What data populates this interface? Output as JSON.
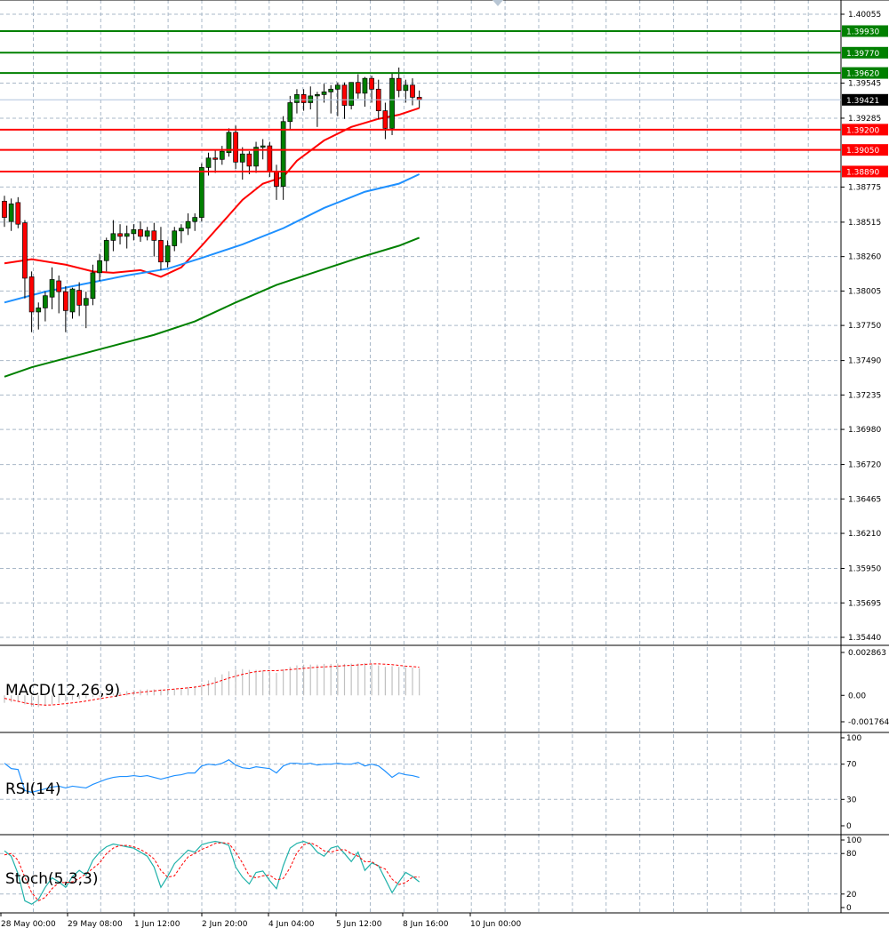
{
  "chart_data": {
    "type": "candlestick",
    "instrument_price_precision": 5,
    "price_axis": {
      "ylim": [
        1.3544,
        1.40055
      ],
      "tick_labels": [
        "1.40055",
        "1.39545",
        "1.39285",
        "1.38775",
        "1.38515",
        "1.38260",
        "1.38005",
        "1.37750",
        "1.37490",
        "1.37235",
        "1.36980",
        "1.36720",
        "1.36465",
        "1.36210",
        "1.35950",
        "1.35695",
        "1.35440"
      ]
    },
    "current_price": {
      "value": 1.39421,
      "label": "1.39421"
    },
    "resistance_levels": [
      {
        "value": 1.3993,
        "label": "1.39930",
        "color": "#008000"
      },
      {
        "value": 1.3977,
        "label": "1.39770",
        "color": "#008000"
      },
      {
        "value": 1.3962,
        "label": "1.39620",
        "color": "#008000"
      }
    ],
    "support_levels": [
      {
        "value": 1.392,
        "label": "1.39200",
        "color": "#ff0000"
      },
      {
        "value": 1.3905,
        "label": "1.39050",
        "color": "#ff0000"
      },
      {
        "value": 1.3889,
        "label": "1.38890",
        "color": "#ff0000"
      }
    ],
    "x_tick_labels": [
      "28 May 00:00",
      "29 May 08:00",
      "1 Jun 12:00",
      "2 Jun 20:00",
      "4 Jun 04:00",
      "5 Jun 12:00",
      "8 Jun 16:00",
      "10 Jun 00:00"
    ],
    "candles": [
      [
        1.3867,
        1.3871,
        1.3848,
        1.3855
      ],
      [
        1.3852,
        1.3869,
        1.3845,
        1.3865
      ],
      [
        1.3866,
        1.387,
        1.3847,
        1.385
      ],
      [
        1.3851,
        1.3853,
        1.3795,
        1.381
      ],
      [
        1.3811,
        1.3815,
        1.377,
        1.3785
      ],
      [
        1.3785,
        1.3792,
        1.3772,
        1.3788
      ],
      [
        1.3788,
        1.38,
        1.3778,
        1.3797
      ],
      [
        1.3796,
        1.3818,
        1.3787,
        1.3809
      ],
      [
        1.3808,
        1.3812,
        1.3784,
        1.38
      ],
      [
        1.38,
        1.3804,
        1.377,
        1.3786
      ],
      [
        1.3785,
        1.3803,
        1.378,
        1.3802
      ],
      [
        1.3801,
        1.3807,
        1.3782,
        1.379
      ],
      [
        1.379,
        1.38,
        1.3773,
        1.3795
      ],
      [
        1.3795,
        1.382,
        1.379,
        1.3814
      ],
      [
        1.3814,
        1.3828,
        1.3808,
        1.3823
      ],
      [
        1.3823,
        1.384,
        1.3815,
        1.3838
      ],
      [
        1.3838,
        1.3853,
        1.383,
        1.3843
      ],
      [
        1.3843,
        1.385,
        1.3835,
        1.3841
      ],
      [
        1.3841,
        1.3849,
        1.3832,
        1.3843
      ],
      [
        1.3843,
        1.385,
        1.3838,
        1.3846
      ],
      [
        1.3846,
        1.3852,
        1.3837,
        1.3841
      ],
      [
        1.3841,
        1.3848,
        1.3838,
        1.3845
      ],
      [
        1.3845,
        1.3851,
        1.3826,
        1.3838
      ],
      [
        1.3838,
        1.3848,
        1.3816,
        1.3822
      ],
      [
        1.3822,
        1.3838,
        1.3818,
        1.3834
      ],
      [
        1.3834,
        1.3848,
        1.383,
        1.3845
      ],
      [
        1.3845,
        1.385,
        1.3836,
        1.3847
      ],
      [
        1.3847,
        1.3858,
        1.3842,
        1.3852
      ],
      [
        1.3852,
        1.3858,
        1.3845,
        1.3855
      ],
      [
        1.3855,
        1.3895,
        1.3852,
        1.3892
      ],
      [
        1.3892,
        1.3903,
        1.3886,
        1.3899
      ],
      [
        1.3899,
        1.3905,
        1.3888,
        1.3898
      ],
      [
        1.3898,
        1.3908,
        1.3894,
        1.3904
      ],
      [
        1.3903,
        1.3921,
        1.39,
        1.3918
      ],
      [
        1.3918,
        1.3923,
        1.3891,
        1.3896
      ],
      [
        1.3896,
        1.3907,
        1.3883,
        1.3902
      ],
      [
        1.3902,
        1.3904,
        1.3887,
        1.3893
      ],
      [
        1.3893,
        1.3911,
        1.3888,
        1.3907
      ],
      [
        1.3907,
        1.3913,
        1.3898,
        1.3908
      ],
      [
        1.3908,
        1.3911,
        1.3885,
        1.3889
      ],
      [
        1.3889,
        1.3894,
        1.3868,
        1.3878
      ],
      [
        1.3878,
        1.393,
        1.3868,
        1.3926
      ],
      [
        1.3926,
        1.3945,
        1.392,
        1.394
      ],
      [
        1.394,
        1.395,
        1.3932,
        1.3946
      ],
      [
        1.3946,
        1.395,
        1.3934,
        1.394
      ],
      [
        1.394,
        1.3952,
        1.3935,
        1.3945
      ],
      [
        1.3945,
        1.3948,
        1.3922,
        1.3946
      ],
      [
        1.3946,
        1.3954,
        1.394,
        1.3948
      ],
      [
        1.3948,
        1.3953,
        1.3932,
        1.395
      ],
      [
        1.395,
        1.3955,
        1.393,
        1.3953
      ],
      [
        1.3953,
        1.3955,
        1.3928,
        1.3938
      ],
      [
        1.3938,
        1.3955,
        1.3935,
        1.3955
      ],
      [
        1.3955,
        1.3961,
        1.3943,
        1.3947
      ],
      [
        1.3947,
        1.3959,
        1.3937,
        1.3958
      ],
      [
        1.3958,
        1.396,
        1.394,
        1.395
      ],
      [
        1.395,
        1.3957,
        1.3928,
        1.3934
      ],
      [
        1.3934,
        1.394,
        1.3913,
        1.3921
      ],
      [
        1.3921,
        1.3962,
        1.3916,
        1.3958
      ],
      [
        1.3958,
        1.3966,
        1.3944,
        1.3949
      ],
      [
        1.3949,
        1.3957,
        1.394,
        1.3953
      ],
      [
        1.3953,
        1.3958,
        1.3938,
        1.3944
      ],
      [
        1.3944,
        1.3949,
        1.3936,
        1.3942
      ]
    ],
    "moving_averages": [
      {
        "color": "#ff0000",
        "points": [
          [
            0,
            1.3821
          ],
          [
            4,
            1.3824
          ],
          [
            9,
            1.382
          ],
          [
            13,
            1.3815
          ],
          [
            16,
            1.3814
          ],
          [
            20,
            1.3816
          ],
          [
            23,
            1.3811
          ],
          [
            26,
            1.3818
          ],
          [
            29,
            1.3834
          ],
          [
            32,
            1.3851
          ],
          [
            35,
            1.3868
          ],
          [
            38,
            1.388
          ],
          [
            41,
            1.3885
          ],
          [
            43,
            1.3897
          ],
          [
            47,
            1.3912
          ],
          [
            51,
            1.3922
          ],
          [
            55,
            1.3928
          ],
          [
            58,
            1.3931
          ],
          [
            61,
            1.3936
          ]
        ]
      },
      {
        "color": "#1e90ff",
        "points": [
          [
            0,
            1.3792
          ],
          [
            6,
            1.38
          ],
          [
            12,
            1.3806
          ],
          [
            18,
            1.3812
          ],
          [
            24,
            1.3817
          ],
          [
            29,
            1.3825
          ],
          [
            35,
            1.3835
          ],
          [
            41,
            1.3847
          ],
          [
            47,
            1.3862
          ],
          [
            53,
            1.3874
          ],
          [
            58,
            1.388
          ],
          [
            61,
            1.3887
          ]
        ]
      },
      {
        "color": "#008000",
        "points": [
          [
            0,
            1.3737
          ],
          [
            4,
            1.3744
          ],
          [
            10,
            1.3752
          ],
          [
            16,
            1.376
          ],
          [
            22,
            1.3768
          ],
          [
            28,
            1.3778
          ],
          [
            34,
            1.3792
          ],
          [
            40,
            1.3805
          ],
          [
            46,
            1.3815
          ],
          [
            52,
            1.3825
          ],
          [
            58,
            1.3834
          ],
          [
            61,
            1.384
          ]
        ]
      }
    ],
    "indicators": [
      {
        "name": "MACD(12,26,9)",
        "tick_labels": [
          "0.002863",
          "0.00",
          "-0.001764"
        ],
        "ylim": [
          -0.001764,
          0.002863
        ],
        "histogram": [
          -0.0005,
          -0.00045,
          -0.0004,
          -0.0006,
          -0.00075,
          -0.00078,
          -0.0007,
          -0.0006,
          -0.0005,
          -0.0004,
          -0.0003,
          -0.00025,
          -0.0002,
          -0.00012,
          -8e-05,
          2e-05,
          0.00012,
          0.0002,
          0.00028,
          0.00034,
          0.00038,
          0.0004,
          0.0004,
          0.0004,
          0.00042,
          0.00045,
          0.0005,
          0.00056,
          0.00062,
          0.0008,
          0.001,
          0.0012,
          0.0014,
          0.0016,
          0.0017,
          0.00175,
          0.0017,
          0.0017,
          0.00165,
          0.0016,
          0.0015,
          0.00175,
          0.0019,
          0.002,
          0.00205,
          0.00205,
          0.00205,
          0.0021,
          0.0021,
          0.00212,
          0.0021,
          0.00212,
          0.00212,
          0.00215,
          0.0021,
          0.002,
          0.0019,
          0.00195,
          0.0019,
          0.00188,
          0.00185,
          0.0018
        ],
        "signal": [
          -0.0002,
          -0.0003,
          -0.0004,
          -0.0005,
          -0.00058,
          -0.00062,
          -0.00065,
          -0.00064,
          -0.0006,
          -0.00055,
          -0.0005,
          -0.00045,
          -0.00038,
          -0.0003,
          -0.00022,
          -0.00015,
          -8e-05,
          0.0,
          8e-05,
          0.00015,
          0.0002,
          0.00025,
          0.0003,
          0.00034,
          0.00038,
          0.00042,
          0.00046,
          0.0005,
          0.00055,
          0.00062,
          0.00072,
          0.00085,
          0.001,
          0.00115,
          0.00128,
          0.0014,
          0.0015,
          0.00158,
          0.00163,
          0.00165,
          0.00165,
          0.00168,
          0.00172,
          0.00176,
          0.0018,
          0.00184,
          0.00188,
          0.0019,
          0.00192,
          0.00195,
          0.00198,
          0.002,
          0.00203,
          0.00206,
          0.0021,
          0.0021,
          0.00208,
          0.00205,
          0.002,
          0.00195,
          0.00192,
          0.00188
        ]
      },
      {
        "name": "RSI(14)",
        "tick_labels": [
          "100",
          "70",
          "30",
          "0"
        ],
        "ylim": [
          0,
          100
        ],
        "levels": [
          70,
          30
        ],
        "values": [
          71,
          65,
          64,
          40,
          38,
          40,
          42,
          44,
          45,
          43,
          45,
          44,
          43,
          47,
          50,
          53,
          55,
          56,
          56,
          57,
          56,
          57,
          55,
          53,
          55,
          57,
          58,
          60,
          60,
          68,
          70,
          69,
          71,
          75,
          69,
          66,
          65,
          67,
          66,
          65,
          60,
          68,
          71,
          71,
          70,
          71,
          69,
          70,
          70,
          71,
          70,
          70,
          72,
          68,
          70,
          68,
          62,
          55,
          60,
          58,
          57,
          55
        ]
      },
      {
        "name": "Stoch(5,3,3)",
        "tick_labels": [
          "100",
          "80",
          "20",
          "0"
        ],
        "ylim": [
          0,
          100
        ],
        "levels": [
          80,
          20
        ],
        "k": [
          84,
          76,
          50,
          10,
          5,
          12,
          30,
          44,
          38,
          30,
          46,
          55,
          48,
          70,
          82,
          90,
          94,
          92,
          90,
          88,
          82,
          76,
          60,
          30,
          46,
          65,
          75,
          85,
          82,
          93,
          96,
          98,
          96,
          92,
          60,
          45,
          35,
          52,
          54,
          40,
          28,
          62,
          88,
          95,
          98,
          94,
          82,
          76,
          88,
          91,
          80,
          68,
          82,
          55,
          66,
          62,
          42,
          22,
          38,
          52,
          46,
          38
        ],
        "d": [
          78,
          80,
          70,
          45,
          22,
          10,
          15,
          28,
          37,
          37,
          38,
          43,
          50,
          58,
          66,
          80,
          88,
          92,
          92,
          90,
          86,
          80,
          72,
          55,
          45,
          47,
          62,
          75,
          80,
          86,
          90,
          95,
          96,
          95,
          82,
          66,
          47,
          44,
          47,
          48,
          41,
          43,
          59,
          81,
          93,
          96,
          91,
          84,
          82,
          85,
          86,
          80,
          76,
          68,
          68,
          61,
          57,
          42,
          34,
          37,
          45,
          45
        ]
      }
    ]
  }
}
